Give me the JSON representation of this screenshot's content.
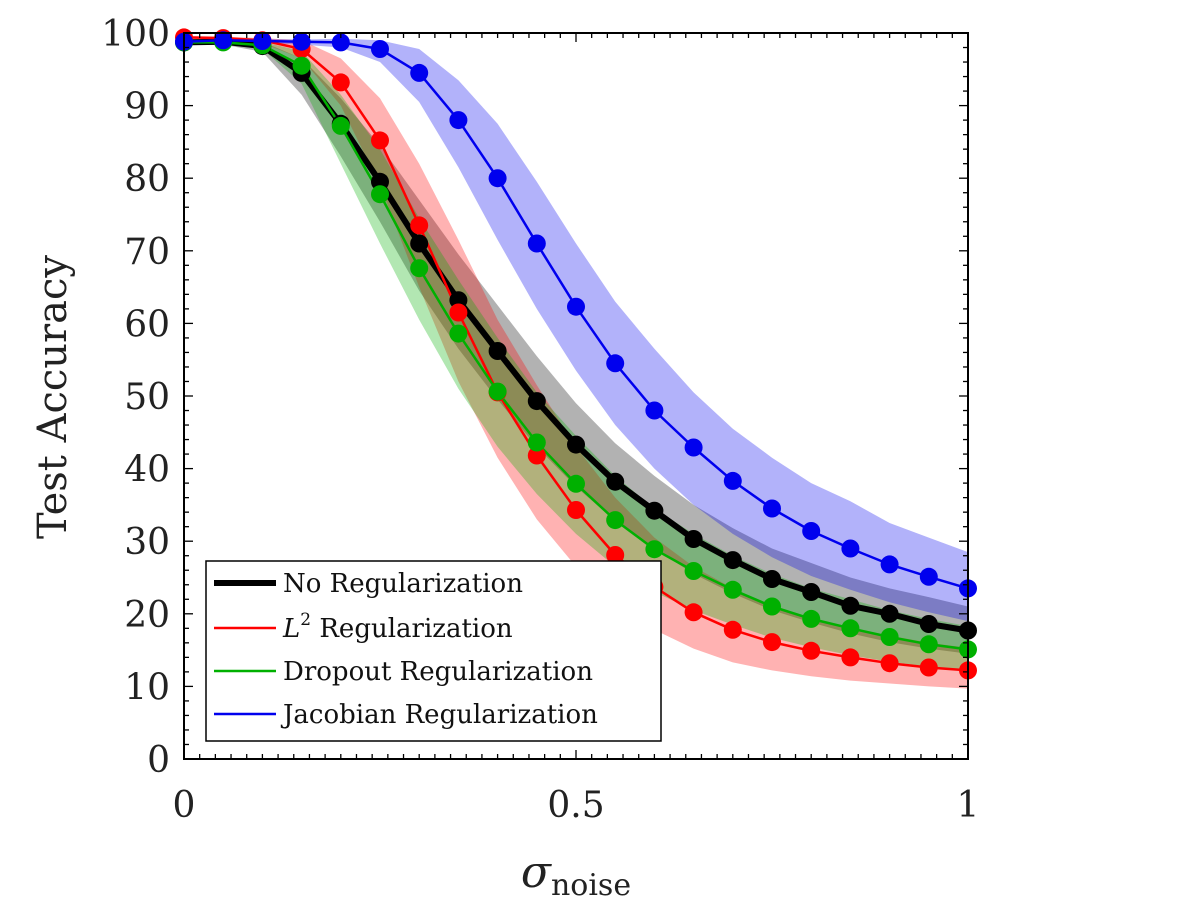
{
  "chart_data": {
    "type": "line",
    "title": "",
    "xlabel": {
      "symbol": "σ",
      "subscript": "noise"
    },
    "ylabel": "Test Accuracy",
    "xlim": [
      0,
      1
    ],
    "ylim": [
      0,
      100
    ],
    "xticks": [
      0,
      0.5,
      1
    ],
    "xtick_labels": [
      "0",
      "0.5",
      "1"
    ],
    "yticks": [
      0,
      10,
      20,
      30,
      40,
      50,
      60,
      70,
      80,
      90,
      100
    ],
    "ytick_labels": [
      "0",
      "10",
      "20",
      "30",
      "40",
      "50",
      "60",
      "70",
      "80",
      "90",
      "100"
    ],
    "grid": false,
    "legend_position": "bottom-left",
    "x": [
      0,
      0.05,
      0.1,
      0.15,
      0.2,
      0.25,
      0.3,
      0.35,
      0.4,
      0.45,
      0.5,
      0.55,
      0.6,
      0.65,
      0.7,
      0.75,
      0.8,
      0.85,
      0.9,
      0.95,
      1.0
    ],
    "series": [
      {
        "name": "No Regularization",
        "label_parts": {
          "main": "No Regularization",
          "sup": ""
        },
        "color": "#000000",
        "line_thick": true,
        "values": [
          98.7,
          98.8,
          98.2,
          94.5,
          87.5,
          79.5,
          71.0,
          63.2,
          56.2,
          49.3,
          43.3,
          38.2,
          34.2,
          30.3,
          27.4,
          24.8,
          23.0,
          21.1,
          20.0,
          18.6,
          17.7
        ],
        "lower": [
          98.4,
          98.4,
          97.4,
          91.5,
          83.0,
          74.0,
          64.5,
          56.5,
          49.5,
          43.0,
          37.5,
          32.8,
          29.0,
          25.5,
          22.8,
          20.5,
          18.8,
          17.3,
          16.1,
          15.2,
          14.5
        ],
        "upper": [
          99.0,
          99.0,
          98.8,
          96.5,
          91.0,
          84.5,
          77.0,
          69.5,
          62.5,
          55.5,
          49.0,
          43.5,
          39.0,
          35.0,
          31.8,
          29.0,
          27.0,
          25.0,
          23.5,
          22.3,
          21.0
        ]
      },
      {
        "name": "L2 Regularization",
        "label_parts": {
          "main": "L",
          "sup": "2",
          "rest": " Regularization"
        },
        "color": "#ff0000",
        "line_thick": false,
        "values": [
          99.4,
          99.3,
          99.0,
          97.8,
          93.2,
          85.2,
          73.5,
          61.5,
          50.5,
          41.8,
          34.3,
          28.1,
          23.7,
          20.2,
          17.8,
          16.1,
          14.9,
          14.0,
          13.2,
          12.6,
          12.2
        ],
        "lower": [
          99.2,
          99.1,
          98.6,
          96.5,
          90.0,
          79.0,
          65.0,
          52.0,
          41.5,
          33.0,
          26.5,
          21.5,
          17.8,
          15.2,
          13.3,
          12.2,
          11.4,
          10.8,
          10.4,
          10.0,
          9.7
        ],
        "upper": [
          99.6,
          99.5,
          99.3,
          99.0,
          96.5,
          91.0,
          82.0,
          71.5,
          60.5,
          51.5,
          43.0,
          36.0,
          30.5,
          26.5,
          23.5,
          21.0,
          19.5,
          18.0,
          17.0,
          16.0,
          15.3
        ]
      },
      {
        "name": "Dropout Regularization",
        "label_parts": {
          "main": "Dropout Regularization",
          "sup": ""
        },
        "color": "#00b000",
        "line_thick": false,
        "values": [
          98.7,
          98.7,
          98.3,
          95.5,
          87.2,
          77.8,
          67.6,
          58.6,
          50.6,
          43.6,
          37.9,
          32.9,
          28.9,
          25.9,
          23.3,
          21.0,
          19.3,
          18.0,
          16.8,
          15.8,
          15.1
        ],
        "lower": [
          98.4,
          98.4,
          97.8,
          93.0,
          82.0,
          71.0,
          60.5,
          51.0,
          43.0,
          36.5,
          31.0,
          26.5,
          23.0,
          20.5,
          18.5,
          16.7,
          15.4,
          14.3,
          13.4,
          12.7,
          12.1
        ],
        "upper": [
          99.0,
          99.0,
          98.8,
          97.5,
          91.5,
          84.0,
          74.5,
          66.0,
          58.0,
          50.5,
          44.5,
          39.0,
          34.5,
          31.0,
          28.0,
          25.5,
          23.5,
          22.0,
          20.5,
          19.3,
          18.3
        ]
      },
      {
        "name": "Jacobian Regularization",
        "label_parts": {
          "main": "Jacobian Regularization",
          "sup": ""
        },
        "color": "#0000ee",
        "line_thick": false,
        "values": [
          98.8,
          99.0,
          98.9,
          98.8,
          98.7,
          97.8,
          94.5,
          88.0,
          80.0,
          71.0,
          62.3,
          54.5,
          48.0,
          42.9,
          38.3,
          34.5,
          31.4,
          29.0,
          26.8,
          25.1,
          23.5
        ],
        "lower": [
          98.5,
          98.7,
          98.6,
          98.4,
          98.0,
          96.0,
          90.5,
          81.5,
          71.5,
          62.0,
          53.5,
          46.0,
          40.0,
          35.0,
          31.0,
          27.8,
          25.2,
          23.3,
          21.6,
          20.2,
          19.0
        ],
        "upper": [
          99.1,
          99.3,
          99.2,
          99.1,
          99.2,
          99.0,
          97.8,
          93.5,
          87.5,
          79.5,
          71.0,
          63.0,
          56.5,
          50.5,
          45.5,
          41.5,
          38.0,
          35.5,
          32.5,
          30.5,
          28.5
        ]
      }
    ]
  }
}
